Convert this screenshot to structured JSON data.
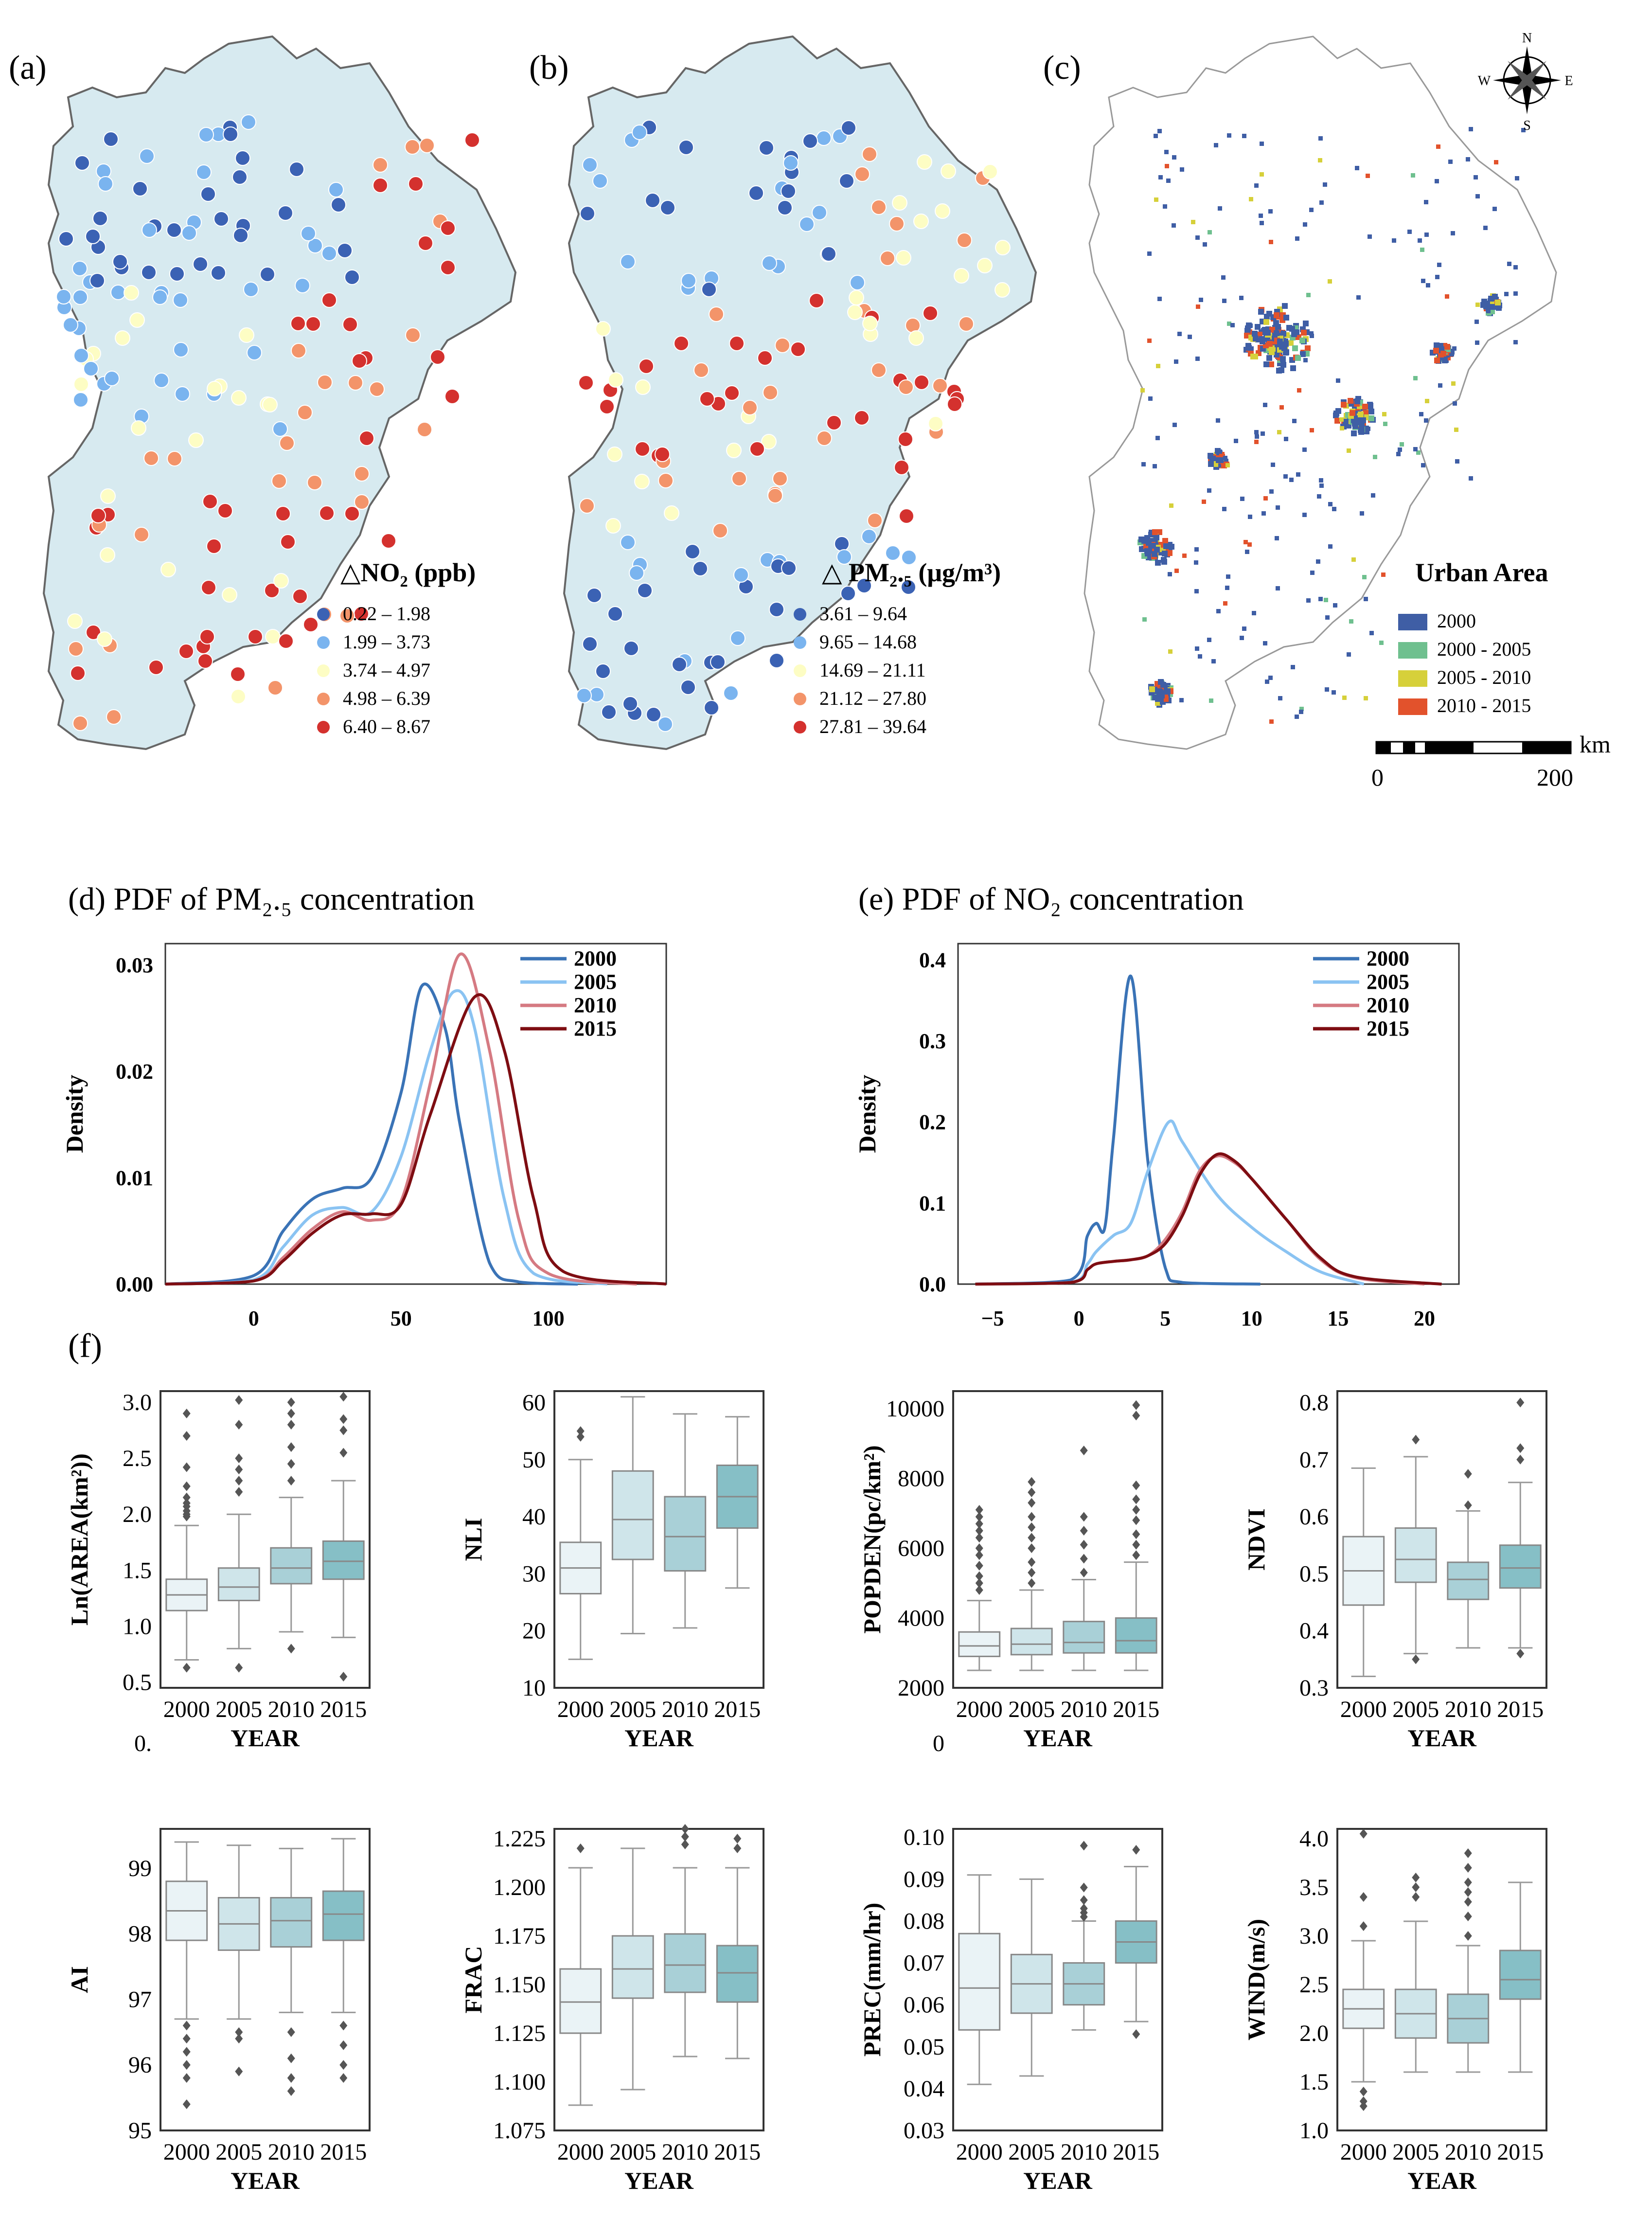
{
  "maps": [
    {
      "label": "(a)",
      "legend_title": "△NO₂ (ppb)",
      "bins": [
        "0.22 – 1.98",
        "1.99 – 3.73",
        "3.74 – 4.97",
        "4.98 – 6.39",
        "6.40 – 8.67"
      ]
    },
    {
      "label": "(b)",
      "legend_title": "△ PM₂.₅ (μg/m³)",
      "bins": [
        "3.61 – 9.64",
        "9.65 – 14.68",
        "14.69 – 21.11",
        "21.12 – 27.80",
        "27.81 – 39.64"
      ]
    },
    {
      "label": "(c)",
      "legend_title": "Urban Area",
      "bins": [
        "2000",
        "2000 - 2005",
        "2005 - 2010",
        "2010 - 2015"
      ],
      "scale_unit": "km",
      "scale_min": "0",
      "scale_max": "200",
      "compass": [
        "N",
        "E",
        "S",
        "W"
      ]
    }
  ],
  "colors": {
    "bin_colors": [
      "#3b62b4",
      "#7ab4ef",
      "#fdfdc4",
      "#f3946a",
      "#d4312e"
    ],
    "urban_colors": [
      "#3f5ea5",
      "#6fc08f",
      "#d6d03a",
      "#e2522c"
    ],
    "map_fill": "#d7eaf0",
    "year_lines": [
      "#3a73b6",
      "#8ac3f2",
      "#d57a82",
      "#7e0d12"
    ],
    "box_fills": [
      "#eaf3f6",
      "#cfe5ea",
      "#a9d0d7",
      "#86bfc6"
    ]
  },
  "chart_data": [
    {
      "type": "line",
      "panel": "d",
      "title": "(d) PDF of PM₂.₅ concentration",
      "ylabel": "Density",
      "xlim": [
        -30,
        140
      ],
      "ylim": [
        0,
        0.032
      ],
      "xticks": [
        "0",
        "50",
        "100"
      ],
      "yticks": [
        "0.00",
        "0.01",
        "0.02",
        "0.03"
      ],
      "series": [
        {
          "name": "2000",
          "x": [
            -30,
            0,
            10,
            20,
            30,
            40,
            50,
            57,
            65,
            70,
            80,
            90,
            110
          ],
          "y": [
            0,
            0.0008,
            0.005,
            0.008,
            0.009,
            0.01,
            0.018,
            0.028,
            0.024,
            0.015,
            0.002,
            0.0002,
            0
          ]
        },
        {
          "name": "2005",
          "x": [
            -30,
            0,
            10,
            20,
            30,
            40,
            50,
            60,
            68,
            75,
            85,
            95,
            120
          ],
          "y": [
            0,
            0.0004,
            0.0035,
            0.0065,
            0.0072,
            0.0068,
            0.012,
            0.022,
            0.0275,
            0.024,
            0.008,
            0.001,
            0
          ]
        },
        {
          "name": "2010",
          "x": [
            -30,
            0,
            10,
            20,
            30,
            40,
            50,
            60,
            70,
            80,
            90,
            100,
            130
          ],
          "y": [
            0,
            0.0003,
            0.0025,
            0.0052,
            0.0068,
            0.006,
            0.0078,
            0.019,
            0.031,
            0.022,
            0.006,
            0.001,
            0
          ]
        },
        {
          "name": "2015",
          "x": [
            -30,
            0,
            10,
            20,
            30,
            40,
            50,
            60,
            75,
            85,
            95,
            105,
            140
          ],
          "y": [
            0,
            0.0003,
            0.0022,
            0.0048,
            0.0065,
            0.0066,
            0.0075,
            0.016,
            0.027,
            0.022,
            0.008,
            0.0012,
            0
          ]
        }
      ]
    },
    {
      "type": "line",
      "panel": "e",
      "title": "(e) PDF of NO₂ concentration",
      "ylabel": "Density",
      "xlim": [
        -7,
        22
      ],
      "ylim": [
        0,
        0.42
      ],
      "xticks": [
        "−5",
        "0",
        "5",
        "10",
        "15",
        "20"
      ],
      "yticks": [
        "0.0",
        "0.1",
        "0.2",
        "0.3",
        "0.4"
      ],
      "series": [
        {
          "name": "2000",
          "x": [
            -6,
            -0.5,
            0.5,
            1,
            1.5,
            2,
            3,
            4,
            5,
            6,
            10.5
          ],
          "y": [
            0,
            0.005,
            0.06,
            0.075,
            0.07,
            0.18,
            0.38,
            0.15,
            0.02,
            0.002,
            0
          ]
        },
        {
          "name": "2005",
          "x": [
            -6,
            -0.5,
            0.5,
            1,
            2,
            3,
            4,
            5.2,
            6,
            8,
            10,
            12,
            14,
            16.5
          ],
          "y": [
            0,
            0.002,
            0.025,
            0.04,
            0.06,
            0.075,
            0.14,
            0.2,
            0.175,
            0.11,
            0.07,
            0.04,
            0.015,
            0
          ]
        },
        {
          "name": "2010",
          "x": [
            -6,
            -0.5,
            0.5,
            1,
            2,
            3,
            4,
            5,
            6,
            7,
            8,
            9,
            10,
            12,
            14,
            16,
            20
          ],
          "y": [
            0,
            0.002,
            0.018,
            0.025,
            0.028,
            0.03,
            0.035,
            0.055,
            0.09,
            0.14,
            0.158,
            0.15,
            0.13,
            0.08,
            0.03,
            0.008,
            0
          ]
        },
        {
          "name": "2015",
          "x": [
            -6,
            -0.5,
            0.5,
            1,
            2,
            3,
            4,
            5,
            6,
            7,
            8,
            9,
            10,
            12,
            14,
            16,
            21
          ],
          "y": [
            0,
            0.002,
            0.018,
            0.025,
            0.028,
            0.03,
            0.035,
            0.05,
            0.085,
            0.135,
            0.16,
            0.152,
            0.13,
            0.08,
            0.032,
            0.009,
            0
          ]
        }
      ]
    },
    {
      "type": "box",
      "panel": "f",
      "panel_label": "(f)",
      "xlabel": "YEAR",
      "categories": [
        "2000",
        "2005",
        "2010",
        "2015"
      ],
      "plots": [
        {
          "ylabel": "Ln(AREA(km²))",
          "ylim": [
            0.45,
            3.1
          ],
          "yticks": [
            "0.5",
            "1.0",
            "1.5",
            "2.0",
            "2.5",
            "3.0"
          ],
          "extra_tick": "0.",
          "boxes": [
            {
              "min": 0.7,
              "q1": 1.14,
              "med": 1.28,
              "q3": 1.42,
              "max": 1.9
            },
            {
              "min": 0.8,
              "q1": 1.23,
              "med": 1.35,
              "q3": 1.52,
              "max": 2.0
            },
            {
              "min": 0.95,
              "q1": 1.38,
              "med": 1.52,
              "q3": 1.7,
              "max": 2.15
            },
            {
              "min": 0.9,
              "q1": 1.42,
              "med": 1.58,
              "q3": 1.76,
              "max": 2.3
            }
          ],
          "outliers": [
            [
              0.63,
              1.98,
              2.0,
              2.03,
              2.07,
              2.1,
              2.15,
              2.25,
              2.42,
              2.7,
              2.9
            ],
            [
              0.63,
              2.2,
              2.3,
              2.4,
              2.5,
              2.8,
              3.02
            ],
            [
              0.8,
              2.3,
              2.45,
              2.6,
              2.8,
              2.9,
              3.0
            ],
            [
              0.55,
              2.55,
              2.75,
              2.85,
              3.05
            ]
          ]
        },
        {
          "ylabel": "NLI",
          "ylim": [
            10,
            62
          ],
          "yticks": [
            "10",
            "20",
            "30",
            "40",
            "50",
            "60"
          ],
          "boxes": [
            {
              "min": 15,
              "q1": 26.5,
              "med": 31,
              "q3": 35.5,
              "max": 50
            },
            {
              "min": 19.5,
              "q1": 32.5,
              "med": 39.5,
              "q3": 48,
              "max": 61
            },
            {
              "min": 20.5,
              "q1": 30.5,
              "med": 36.5,
              "q3": 43.5,
              "max": 58
            },
            {
              "min": 27.5,
              "q1": 38,
              "med": 43.5,
              "q3": 49,
              "max": 57.5
            }
          ],
          "outliers": [
            [
              54,
              55
            ],
            [],
            [],
            []
          ]
        },
        {
          "ylabel": "POPDEN(pc/km²)",
          "ylim": [
            2000,
            10500
          ],
          "yticks": [
            "2000",
            "4000",
            "6000",
            "8000",
            "10000"
          ],
          "extra_tick": "0",
          "boxes": [
            {
              "min": 2500,
              "q1": 2900,
              "med": 3200,
              "q3": 3600,
              "max": 4500
            },
            {
              "min": 2500,
              "q1": 2950,
              "med": 3250,
              "q3": 3700,
              "max": 4800
            },
            {
              "min": 2500,
              "q1": 3000,
              "med": 3300,
              "q3": 3900,
              "max": 5100
            },
            {
              "min": 2500,
              "q1": 3000,
              "med": 3350,
              "q3": 4000,
              "max": 5600
            }
          ],
          "outliers": [
            [
              4800,
              5000,
              5200,
              5500,
              5800,
              6000,
              6300,
              6500,
              6700,
              6900,
              7100
            ],
            [
              5000,
              5300,
              5600,
              6000,
              6300,
              6600,
              6900,
              7300,
              7600,
              7900
            ],
            [
              5300,
              5700,
              6100,
              6500,
              6900,
              8800
            ],
            [
              5800,
              6100,
              6400,
              6800,
              7100,
              7400,
              7800,
              9800,
              10100
            ]
          ]
        },
        {
          "ylabel": "NDVI",
          "ylim": [
            0.3,
            0.82
          ],
          "yticks": [
            "0.3",
            "0.4",
            "0.5",
            "0.6",
            "0.7",
            "0.8"
          ],
          "boxes": [
            {
              "min": 0.32,
              "q1": 0.445,
              "med": 0.505,
              "q3": 0.565,
              "max": 0.685
            },
            {
              "min": 0.36,
              "q1": 0.485,
              "med": 0.525,
              "q3": 0.58,
              "max": 0.705
            },
            {
              "min": 0.37,
              "q1": 0.455,
              "med": 0.49,
              "q3": 0.52,
              "max": 0.61
            },
            {
              "min": 0.37,
              "q1": 0.475,
              "med": 0.51,
              "q3": 0.55,
              "max": 0.66
            }
          ],
          "outliers": [
            [],
            [
              0.35,
              0.735
            ],
            [
              0.62,
              0.675
            ],
            [
              0.36,
              0.7,
              0.72,
              0.8
            ]
          ]
        },
        {
          "ylabel": "AI",
          "ylim": [
            95,
            99.6
          ],
          "yticks": [
            "95",
            "96",
            "97",
            "98",
            "99"
          ],
          "boxes": [
            {
              "min": 96.7,
              "q1": 97.9,
              "med": 98.35,
              "q3": 98.8,
              "max": 99.4
            },
            {
              "min": 96.7,
              "q1": 97.75,
              "med": 98.15,
              "q3": 98.55,
              "max": 99.35
            },
            {
              "min": 96.8,
              "q1": 97.8,
              "med": 98.2,
              "q3": 98.55,
              "max": 99.3
            },
            {
              "min": 96.8,
              "q1": 97.9,
              "med": 98.3,
              "q3": 98.65,
              "max": 99.45
            }
          ],
          "outliers": [
            [
              95.4,
              95.8,
              96.0,
              96.2,
              96.4,
              96.6
            ],
            [
              95.9,
              96.4,
              96.5
            ],
            [
              95.6,
              95.8,
              96.1,
              96.5
            ],
            [
              95.8,
              96.0,
              96.3,
              96.6
            ]
          ]
        },
        {
          "ylabel": "FRAC",
          "ylim": [
            1.075,
            1.23
          ],
          "yticks": [
            "1.075",
            "1.100",
            "1.125",
            "1.150",
            "1.175",
            "1.200",
            "1.225"
          ],
          "boxes": [
            {
              "min": 1.088,
              "q1": 1.125,
              "med": 1.141,
              "q3": 1.158,
              "max": 1.21
            },
            {
              "min": 1.096,
              "q1": 1.143,
              "med": 1.158,
              "q3": 1.175,
              "max": 1.22
            },
            {
              "min": 1.113,
              "q1": 1.146,
              "med": 1.16,
              "q3": 1.176,
              "max": 1.21
            },
            {
              "min": 1.112,
              "q1": 1.141,
              "med": 1.156,
              "q3": 1.17,
              "max": 1.21
            }
          ],
          "outliers": [
            [
              1.22
            ],
            [],
            [
              1.222,
              1.226,
              1.23
            ],
            [
              1.22,
              1.225
            ]
          ]
        },
        {
          "ylabel": "PREC(mm/hr)",
          "ylim": [
            0.03,
            0.102
          ],
          "yticks": [
            "0.03",
            "0.04",
            "0.05",
            "0.06",
            "0.07",
            "0.08",
            "0.09",
            "0.10"
          ],
          "boxes": [
            {
              "min": 0.041,
              "q1": 0.054,
              "med": 0.064,
              "q3": 0.077,
              "max": 0.091
            },
            {
              "min": 0.043,
              "q1": 0.058,
              "med": 0.065,
              "q3": 0.072,
              "max": 0.09
            },
            {
              "min": 0.054,
              "q1": 0.06,
              "med": 0.065,
              "q3": 0.07,
              "max": 0.08
            },
            {
              "min": 0.056,
              "q1": 0.07,
              "med": 0.075,
              "q3": 0.08,
              "max": 0.093
            }
          ],
          "outliers": [
            [],
            [],
            [
              0.081,
              0.082,
              0.083,
              0.085,
              0.088,
              0.098
            ],
            [
              0.053,
              0.097
            ]
          ]
        },
        {
          "ylabel": "WIND(m/s)",
          "ylim": [
            1.0,
            4.1
          ],
          "yticks": [
            "1.0",
            "1.5",
            "2.0",
            "2.5",
            "3.0",
            "3.5",
            "4.0"
          ],
          "boxes": [
            {
              "min": 1.5,
              "q1": 2.05,
              "med": 2.25,
              "q3": 2.45,
              "max": 2.95
            },
            {
              "min": 1.6,
              "q1": 1.95,
              "med": 2.2,
              "q3": 2.45,
              "max": 3.15
            },
            {
              "min": 1.6,
              "q1": 1.9,
              "med": 2.15,
              "q3": 2.4,
              "max": 2.9
            },
            {
              "min": 1.6,
              "q1": 2.35,
              "med": 2.55,
              "q3": 2.85,
              "max": 3.55
            }
          ],
          "outliers": [
            [
              1.25,
              1.3,
              1.4,
              3.1,
              3.4,
              4.05
            ],
            [
              3.4,
              3.5,
              3.6
            ],
            [
              3.0,
              3.2,
              3.35,
              3.45,
              3.55,
              3.7,
              3.85
            ],
            []
          ]
        }
      ]
    }
  ]
}
